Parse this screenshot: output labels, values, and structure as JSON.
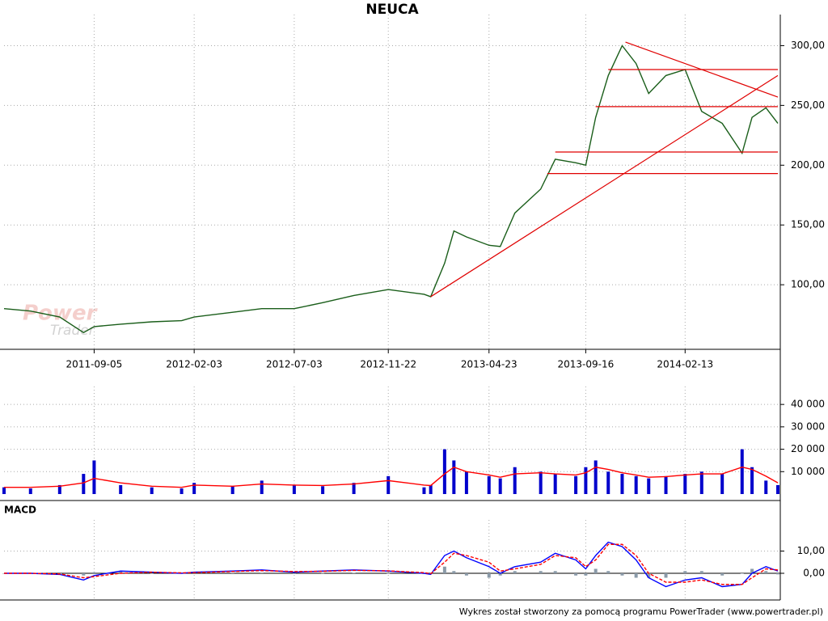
{
  "chart_data": [
    {
      "type": "line",
      "title": "NEUCA",
      "x": [
        "2011-04-22",
        "2011-06-01",
        "2011-07-15",
        "2011-08-20",
        "2011-09-05",
        "2011-10-15",
        "2011-12-01",
        "2012-01-15",
        "2012-02-03",
        "2012-04-01",
        "2012-05-15",
        "2012-07-03",
        "2012-08-15",
        "2012-10-01",
        "2012-11-22",
        "2013-01-15",
        "2013-01-25",
        "2013-02-15",
        "2013-03-01",
        "2013-03-20",
        "2013-04-23",
        "2013-05-10",
        "2013-06-01",
        "2013-07-10",
        "2013-08-01",
        "2013-09-01",
        "2013-09-16",
        "2013-10-01",
        "2013-10-20",
        "2013-11-10",
        "2013-12-01",
        "2013-12-20",
        "2014-01-15",
        "2014-02-13",
        "2014-03-10",
        "2014-04-10",
        "2014-05-10",
        "2014-05-25",
        "2014-06-15",
        "2014-07-03"
      ],
      "series": [
        {
          "color": "#1a5e1a",
          "values": [
            80,
            78,
            73,
            60,
            65,
            67,
            69,
            70,
            73,
            77,
            80,
            80,
            85,
            91,
            96,
            92,
            90,
            118,
            145,
            140,
            133,
            132,
            160,
            180,
            205,
            202,
            200,
            240,
            275,
            300,
            285,
            260,
            275,
            280,
            245,
            235,
            210,
            240,
            248,
            235
          ]
        }
      ],
      "xlim": [
        "2011-04-22",
        "2014-07-03"
      ],
      "xticks": [
        "2011-09-05",
        "2012-02-03",
        "2012-07-03",
        "2012-11-22",
        "2013-04-23",
        "2013-09-16",
        "2014-02-13"
      ],
      "ylim": [
        46,
        326
      ],
      "yticks": [
        {
          "value": 100,
          "label": "100,00"
        },
        {
          "value": 150,
          "label": "150,00"
        },
        {
          "value": 200,
          "label": "200,00"
        },
        {
          "value": 250,
          "label": "250,00"
        },
        {
          "value": 300,
          "label": "300,00"
        }
      ],
      "grid": true,
      "trendline_color": "#e00000",
      "trendlines": [
        {
          "x": [
            "2013-01-25",
            "2014-07-03"
          ],
          "y": [
            90,
            275
          ]
        },
        {
          "x": [
            "2013-11-15",
            "2014-07-03"
          ],
          "y": [
            303,
            257
          ]
        },
        {
          "x": [
            "2013-10-20",
            "2014-07-03"
          ],
          "y": [
            280,
            280
          ]
        },
        {
          "x": [
            "2013-10-01",
            "2014-07-03"
          ],
          "y": [
            249,
            249
          ]
        },
        {
          "x": [
            "2013-08-01",
            "2014-07-03"
          ],
          "y": [
            211,
            211
          ]
        },
        {
          "x": [
            "2013-07-20",
            "2014-07-03"
          ],
          "y": [
            193,
            193
          ]
        }
      ],
      "watermark": [
        "Power",
        "Trader"
      ]
    },
    {
      "type": "bar",
      "x": [
        "2011-04-22",
        "2011-06-01",
        "2011-07-15",
        "2011-08-20",
        "2011-09-05",
        "2011-10-15",
        "2011-12-01",
        "2012-01-15",
        "2012-02-03",
        "2012-04-01",
        "2012-05-15",
        "2012-07-03",
        "2012-08-15",
        "2012-10-01",
        "2012-11-22",
        "2013-01-15",
        "2013-01-25",
        "2013-02-15",
        "2013-03-01",
        "2013-03-20",
        "2013-04-23",
        "2013-05-10",
        "2013-06-01",
        "2013-07-10",
        "2013-08-01",
        "2013-09-01",
        "2013-09-16",
        "2013-10-01",
        "2013-10-20",
        "2013-11-10",
        "2013-12-01",
        "2013-12-20",
        "2014-01-15",
        "2014-02-13",
        "2014-03-10",
        "2014-04-10",
        "2014-05-10",
        "2014-05-25",
        "2014-06-15",
        "2014-07-03"
      ],
      "series": [
        {
          "type": "bar",
          "color": "#0000cc",
          "values": [
            3000,
            2500,
            4000,
            9000,
            15000,
            4000,
            3000,
            2500,
            5000,
            3500,
            6000,
            4000,
            3500,
            5000,
            8000,
            3000,
            4000,
            20000,
            15000,
            10000,
            8000,
            7000,
            12000,
            10000,
            9000,
            8000,
            12000,
            15000,
            10000,
            9000,
            8000,
            7000,
            8000,
            9000,
            10000,
            9000,
            20000,
            12000,
            6000,
            4000
          ]
        },
        {
          "type": "line",
          "color": "#ff0000",
          "values": [
            3000,
            3000,
            3500,
            5000,
            7000,
            5000,
            3500,
            3000,
            4000,
            3500,
            4500,
            4000,
            3800,
            4500,
            6000,
            4000,
            3800,
            9000,
            12000,
            10000,
            8500,
            7500,
            9000,
            9500,
            9000,
            8500,
            9500,
            12000,
            11000,
            9500,
            8500,
            7500,
            7800,
            8500,
            9000,
            9000,
            12000,
            11000,
            8000,
            5000
          ]
        }
      ],
      "ylim": [
        0,
        48000
      ],
      "yticks": [
        {
          "value": 10000,
          "label": "10 000"
        },
        {
          "value": 20000,
          "label": "20 000"
        },
        {
          "value": 30000,
          "label": "30 000"
        },
        {
          "value": 40000,
          "label": "40 000"
        }
      ],
      "grid": true
    },
    {
      "type": "line",
      "title": "MACD",
      "x": [
        "2011-04-22",
        "2011-06-01",
        "2011-07-15",
        "2011-08-20",
        "2011-09-05",
        "2011-10-15",
        "2011-12-01",
        "2012-01-15",
        "2012-02-03",
        "2012-04-01",
        "2012-05-15",
        "2012-07-03",
        "2012-08-15",
        "2012-10-01",
        "2012-11-22",
        "2013-01-15",
        "2013-01-25",
        "2013-02-15",
        "2013-03-01",
        "2013-03-20",
        "2013-04-23",
        "2013-05-10",
        "2013-06-01",
        "2013-07-10",
        "2013-08-01",
        "2013-09-01",
        "2013-09-16",
        "2013-10-01",
        "2013-10-20",
        "2013-11-10",
        "2013-12-01",
        "2013-12-20",
        "2014-01-15",
        "2014-02-13",
        "2014-03-10",
        "2014-04-10",
        "2014-05-10",
        "2014-05-25",
        "2014-06-15",
        "2014-07-03"
      ],
      "series": [
        {
          "type": "bar",
          "color": "#8a9aa8",
          "values": [
            0,
            0,
            -0.2,
            -1,
            0.5,
            1,
            0,
            -0.2,
            0.2,
            0.2,
            0.3,
            -0.3,
            0.1,
            0.2,
            -0.1,
            -0.3,
            -0.3,
            3,
            1,
            -1,
            -2,
            -1,
            1,
            1,
            1,
            -1,
            -1,
            2,
            1,
            -1,
            -2,
            -2,
            -2,
            1,
            1,
            -1,
            0,
            2,
            1,
            -0.5
          ]
        },
        {
          "type": "line",
          "color": "#0000ff",
          "values": [
            0,
            0,
            -0.5,
            -3,
            -1,
            1,
            0.5,
            0,
            0.5,
            1,
            1.5,
            0.5,
            1,
            1.5,
            1,
            0,
            -0.5,
            8,
            10,
            7,
            3,
            0,
            3,
            5,
            9,
            6,
            2,
            8,
            14,
            12,
            6,
            -2,
            -6,
            -3,
            -2,
            -6,
            -5,
            0,
            3,
            1
          ]
        },
        {
          "type": "line",
          "color": "#ff0000",
          "dash": true,
          "values": [
            0,
            0,
            -0.3,
            -2,
            -1.5,
            0,
            0.5,
            0.2,
            0.3,
            0.8,
            1.2,
            0.8,
            0.9,
            1.3,
            1.1,
            0.3,
            -0.2,
            5,
            9,
            8,
            5,
            1,
            2,
            4,
            8,
            7,
            3,
            6,
            13,
            13,
            8,
            0,
            -4,
            -4,
            -3,
            -5,
            -5,
            -2,
            2,
            1.5
          ]
        }
      ],
      "ylim": [
        -12,
        24
      ],
      "yticks": [
        {
          "value": 0,
          "label": "0,00"
        },
        {
          "value": 10,
          "label": "10,00"
        }
      ],
      "grid": true
    }
  ],
  "footer": "Wykres został stworzony za pomocą programu PowerTrader (www.powertrader.pl)"
}
